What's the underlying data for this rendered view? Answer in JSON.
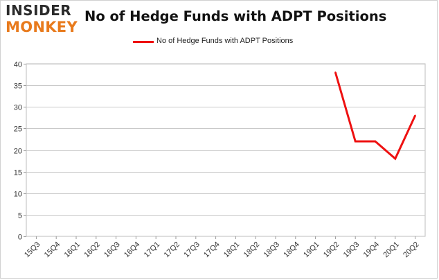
{
  "brand": {
    "line1": "INSIDER",
    "line2": "MONKEY",
    "colors": {
      "dark": "#2b2b2b",
      "orange": "#e87a1c"
    }
  },
  "chart_data": {
    "type": "line",
    "title": "No of Hedge Funds with ADPT Positions",
    "xlabel": "",
    "ylabel": "",
    "categories": [
      "15Q3",
      "15Q4",
      "16Q1",
      "16Q2",
      "16Q3",
      "16Q4",
      "17Q1",
      "17Q2",
      "17Q3",
      "17Q4",
      "18Q1",
      "18Q2",
      "18Q3",
      "18Q4",
      "19Q1",
      "19Q2",
      "19Q3",
      "19Q4",
      "20Q1",
      "20Q2"
    ],
    "series": [
      {
        "name": "No of Hedge Funds with ADPT Positions",
        "color": "#ee1111",
        "values": [
          null,
          null,
          null,
          null,
          null,
          null,
          null,
          null,
          null,
          null,
          null,
          null,
          null,
          null,
          null,
          38,
          22,
          22,
          18,
          28
        ]
      }
    ],
    "ylim": [
      0,
      40
    ],
    "yticks": [
      0,
      5,
      10,
      15,
      20,
      25,
      30,
      35,
      40
    ],
    "grid": true,
    "legend_position": "top-center"
  }
}
